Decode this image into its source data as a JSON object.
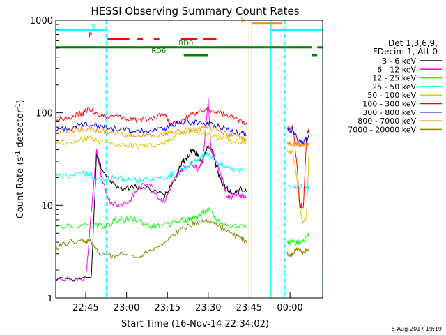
{
  "chart_data": {
    "type": "line",
    "title": "HESSI Observing Summary Count Rates",
    "xlabel": "Start Time (16-Nov-14 22:34:02)",
    "ylabel_main": "Count Rate (s",
    "ylabel_sup1": "-1",
    "ylabel_mid": " detector",
    "ylabel_sup2": "-1",
    "ylabel_end": ")",
    "yscale": "log",
    "ylim": [
      1,
      1000
    ],
    "xlim": [
      "22:34:02",
      "00:12:00"
    ],
    "xlim_minutes": [
      0,
      98
    ],
    "x_ticks": [
      {
        "label": "22:45",
        "minute": 11
      },
      {
        "label": "23:00",
        "minute": 26
      },
      {
        "label": "23:15",
        "minute": 41
      },
      {
        "label": "23:30",
        "minute": 56
      },
      {
        "label": "23:45",
        "minute": 71
      },
      {
        "label": "00:00",
        "minute": 86
      }
    ],
    "y_ticks": [
      {
        "label": "1",
        "value": 1
      },
      {
        "label": "10",
        "value": 10
      },
      {
        "label": "100",
        "value": 100
      },
      {
        "label": "1000",
        "value": 1000
      }
    ],
    "legend": {
      "placement": "right",
      "header": [
        "Det 1,3,6,9,",
        "FDecim 1, Att 0"
      ]
    },
    "series": [
      {
        "name": "3 - 6 keV",
        "color": "#000000"
      },
      {
        "name": "6 - 12 keV",
        "color": "#ff00ff"
      },
      {
        "name": "12 - 25 keV",
        "color": "#00ff00"
      },
      {
        "name": "25 - 50 keV",
        "color": "#00ffff"
      },
      {
        "name": "50 - 100 keV",
        "color": "#d0d000"
      },
      {
        "name": "100 - 300 keV",
        "color": "#ff0000"
      },
      {
        "name": "300 - 800 keV",
        "color": "#0000ff"
      },
      {
        "name": "800 - 7000 keV",
        "color": "#ff8c00"
      },
      {
        "name": "7000 - 20000 keV",
        "color": "#8b8000"
      }
    ],
    "segments": [
      {
        "range_minutes": [
          0,
          71
        ],
        "values": {
          "3 - 6 keV": [
            [
              0,
              1.6
            ],
            [
              13,
              1.6
            ],
            [
              15,
              35
            ],
            [
              17,
              25
            ],
            [
              20,
              18
            ],
            [
              24,
              15
            ],
            [
              28,
              16
            ],
            [
              34,
              15
            ],
            [
              40,
              13
            ],
            [
              44,
              20
            ],
            [
              46,
              28
            ],
            [
              48,
              32
            ],
            [
              50,
              40
            ],
            [
              52,
              35
            ],
            [
              54,
              30
            ],
            [
              56,
              45
            ],
            [
              58,
              35
            ],
            [
              60,
              20
            ],
            [
              62,
              16
            ],
            [
              64,
              14
            ],
            [
              66,
              14
            ],
            [
              68,
              15
            ],
            [
              70,
              14
            ]
          ],
          "6 - 12 keV": [
            [
              0,
              1.6
            ],
            [
              11,
              1.6
            ],
            [
              13,
              8
            ],
            [
              15,
              40
            ],
            [
              17,
              18
            ],
            [
              20,
              11
            ],
            [
              23,
              10
            ],
            [
              27,
              11
            ],
            [
              30,
              15
            ],
            [
              34,
              18
            ],
            [
              38,
              12
            ],
            [
              40,
              11
            ],
            [
              43,
              18
            ],
            [
              45,
              22
            ],
            [
              47,
              26
            ],
            [
              50,
              28
            ],
            [
              52,
              25
            ],
            [
              54,
              30
            ],
            [
              56,
              140
            ],
            [
              57,
              40
            ],
            [
              59,
              30
            ],
            [
              61,
              20
            ],
            [
              63,
              12
            ],
            [
              66,
              13
            ],
            [
              68,
              13
            ],
            [
              70,
              12
            ]
          ],
          "12 - 25 keV": [
            [
              0,
              6
            ],
            [
              15,
              6
            ],
            [
              19,
              6
            ],
            [
              22,
              7
            ],
            [
              25,
              7
            ],
            [
              30,
              7
            ],
            [
              34,
              6
            ],
            [
              40,
              6
            ],
            [
              46,
              7
            ],
            [
              50,
              7
            ],
            [
              53,
              8
            ],
            [
              56,
              9
            ],
            [
              59,
              7
            ],
            [
              63,
              6
            ],
            [
              70,
              6
            ]
          ],
          "25 - 50 keV": [
            [
              0,
              21
            ],
            [
              5,
              21
            ],
            [
              10,
              22
            ],
            [
              12,
              22
            ],
            [
              14,
              20
            ],
            [
              18,
              19
            ],
            [
              22,
              20
            ],
            [
              26,
              19
            ],
            [
              30,
              19
            ],
            [
              34,
              19
            ],
            [
              38,
              20
            ],
            [
              41,
              20
            ],
            [
              43,
              22
            ],
            [
              46,
              24
            ],
            [
              50,
              28
            ],
            [
              52,
              32
            ],
            [
              54,
              35
            ],
            [
              56,
              36
            ],
            [
              60,
              28
            ],
            [
              63,
              25
            ],
            [
              66,
              24
            ],
            [
              70,
              24
            ]
          ],
          "50 - 100 keV": [
            [
              0,
              48
            ],
            [
              6,
              48
            ],
            [
              10,
              52
            ],
            [
              12,
              54
            ],
            [
              15,
              50
            ],
            [
              20,
              47
            ],
            [
              26,
              45
            ],
            [
              30,
              44
            ],
            [
              35,
              45
            ],
            [
              40,
              47
            ],
            [
              42,
              52
            ],
            [
              45,
              60
            ],
            [
              48,
              62
            ],
            [
              52,
              62
            ],
            [
              56,
              58
            ],
            [
              60,
              54
            ],
            [
              64,
              50
            ],
            [
              68,
              48
            ],
            [
              70,
              48
            ]
          ],
          "100 - 300 keV": [
            [
              0,
              85
            ],
            [
              6,
              92
            ],
            [
              10,
              98
            ],
            [
              12,
              110
            ],
            [
              15,
              98
            ],
            [
              20,
              92
            ],
            [
              26,
              86
            ],
            [
              30,
              85
            ],
            [
              35,
              86
            ],
            [
              40,
              100
            ],
            [
              42,
              75
            ],
            [
              46,
              80
            ],
            [
              50,
              95
            ],
            [
              52,
              100
            ],
            [
              56,
              108
            ],
            [
              60,
              100
            ],
            [
              64,
              90
            ],
            [
              68,
              82
            ],
            [
              70,
              78
            ]
          ],
          "300 - 800 keV": [
            [
              0,
              66
            ],
            [
              5,
              68
            ],
            [
              10,
              75
            ],
            [
              14,
              76
            ],
            [
              18,
              70
            ],
            [
              24,
              66
            ],
            [
              28,
              64
            ],
            [
              34,
              63
            ],
            [
              40,
              66
            ],
            [
              42,
              75
            ],
            [
              48,
              78
            ],
            [
              52,
              78
            ],
            [
              56,
              76
            ],
            [
              60,
              72
            ],
            [
              64,
              65
            ],
            [
              68,
              60
            ],
            [
              70,
              57
            ]
          ],
          "800 - 7000 keV": [
            [
              0,
              62
            ],
            [
              5,
              64
            ],
            [
              10,
              68
            ],
            [
              14,
              66
            ],
            [
              18,
              62
            ],
            [
              24,
              58
            ],
            [
              28,
              57
            ],
            [
              34,
              56
            ],
            [
              40,
              58
            ],
            [
              43,
              62
            ],
            [
              48,
              65
            ],
            [
              52,
              68
            ],
            [
              56,
              68
            ],
            [
              60,
              65
            ],
            [
              64,
              58
            ],
            [
              68,
              54
            ],
            [
              70,
              52
            ]
          ],
          "7000 - 20000 keV": [
            [
              0,
              3.5
            ],
            [
              5,
              4
            ],
            [
              10,
              4.2
            ],
            [
              13,
              4
            ],
            [
              16,
              3
            ],
            [
              20,
              2.8
            ],
            [
              24,
              3
            ],
            [
              30,
              2.8
            ],
            [
              36,
              3.5
            ],
            [
              40,
              4
            ],
            [
              44,
              5
            ],
            [
              48,
              6
            ],
            [
              52,
              6.5
            ],
            [
              56,
              7
            ],
            [
              60,
              6
            ],
            [
              64,
              5
            ],
            [
              68,
              4.5
            ],
            [
              70,
              4
            ]
          ]
        }
      },
      {
        "range_minutes": [
          85,
          93
        ],
        "values": {
          "3 - 6 keV": [],
          "6 - 12 keV": [],
          "12 - 25 keV": [
            [
              85,
              4
            ],
            [
              87,
              4
            ],
            [
              89,
              4
            ],
            [
              91,
              4
            ],
            [
              93,
              5
            ]
          ],
          "25 - 50 keV": [
            [
              85,
              16
            ],
            [
              88,
              16
            ],
            [
              91,
              16
            ],
            [
              93,
              16
            ]
          ],
          "50 - 100 keV": [
            [
              85,
              38
            ],
            [
              87,
              38
            ],
            [
              88.5,
              20
            ],
            [
              89.5,
              10
            ],
            [
              90.5,
              6.5
            ],
            [
              92,
              7
            ],
            [
              93,
              42
            ]
          ],
          "100 - 300 keV": [
            [
              85,
              70
            ],
            [
              87,
              70
            ],
            [
              88.5,
              30
            ],
            [
              89.5,
              10
            ],
            [
              91,
              10
            ],
            [
              92,
              50
            ],
            [
              93,
              70
            ]
          ],
          "300 - 800 keV": [
            [
              85,
              65
            ],
            [
              87,
              65
            ],
            [
              89,
              50
            ],
            [
              91,
              48
            ],
            [
              93,
              55
            ]
          ],
          "800 - 7000 keV": [
            [
              85,
              47
            ],
            [
              87,
              47
            ],
            [
              89,
              46
            ],
            [
              91,
              45
            ],
            [
              93,
              45
            ]
          ],
          "7000 - 20000 keV": [
            [
              85,
              3
            ],
            [
              87,
              3
            ],
            [
              89,
              3.5
            ],
            [
              91,
              3
            ],
            [
              93,
              3.5
            ]
          ]
        }
      }
    ],
    "annotations": [
      {
        "text": "N",
        "color": "#00ffff",
        "minute": 15,
        "level": 780
      },
      {
        "text": "F",
        "color": "#ff0000",
        "minute": 14,
        "level": 620
      },
      {
        "text": "RD0",
        "color": "#008000",
        "minute": 51,
        "level": 510
      },
      {
        "text": "RD6",
        "color": "#008000",
        "minute": 41,
        "level": 420
      },
      {
        "text": "S",
        "color": "#ff8c00",
        "minute": 70,
        "level": 920
      }
    ],
    "flag_bars": [
      {
        "name": "night",
        "color": "#00ffff",
        "level": 780,
        "ranges": [
          [
            0,
            18
          ],
          [
            79,
            98
          ]
        ]
      },
      {
        "name": "flare",
        "color": "#ff0000",
        "level": 620,
        "ranges": [
          [
            19,
            27
          ],
          [
            30,
            32
          ],
          [
            36,
            38
          ],
          [
            46,
            52
          ],
          [
            54,
            56
          ],
          [
            56,
            59
          ]
        ]
      },
      {
        "name": "saa",
        "color": "#ff8c00",
        "level": 920,
        "ranges": [
          [
            72,
            83
          ]
        ]
      },
      {
        "name": "rd0",
        "color": "#008000",
        "level": 510,
        "ranges": [
          [
            0,
            94
          ],
          [
            96,
            98
          ]
        ]
      },
      {
        "name": "rd6",
        "color": "#008000",
        "level": 420,
        "ranges": [
          [
            47,
            56
          ],
          [
            94,
            96
          ]
        ]
      }
    ],
    "vlines": [
      {
        "color": "#00ffff",
        "minute": 18.5,
        "style": "dashed"
      },
      {
        "color": "#ff8c00",
        "minute": 71,
        "style": "solid"
      },
      {
        "color": "#ff8c00",
        "minute": 72,
        "style": "solid"
      },
      {
        "color": "#00ffff",
        "minute": 79,
        "style": "solid"
      },
      {
        "color": "#ff8c00",
        "minute": 83,
        "style": "dashed"
      },
      {
        "color": "#00ffff",
        "minute": 84,
        "style": "dashed"
      },
      {
        "color": "#00ffff",
        "minute": 98,
        "style": "dashed"
      }
    ],
    "footer": "5-Aug-2017 19:19"
  }
}
